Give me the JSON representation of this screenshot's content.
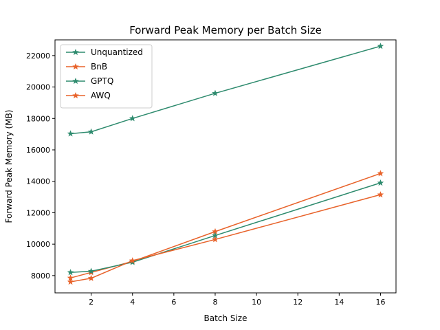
{
  "chart_data": {
    "type": "line",
    "title": "Forward Peak Memory per Batch Size",
    "xlabel": "Batch Size",
    "ylabel": "Forward Peak Memory (MB)",
    "xlim": [
      0.25,
      16.75
    ],
    "ylim": [
      6900,
      23000
    ],
    "xticks": [
      2,
      4,
      6,
      8,
      10,
      12,
      14,
      16
    ],
    "yticks": [
      8000,
      10000,
      12000,
      14000,
      16000,
      18000,
      20000,
      22000
    ],
    "grid": false,
    "legend_position": "top-left",
    "x": [
      1,
      2,
      4,
      8,
      16
    ],
    "series": [
      {
        "name": "Unquantized",
        "color": "#2e8b6e",
        "marker": "star",
        "values": [
          17030,
          17150,
          18000,
          19600,
          22600
        ]
      },
      {
        "name": "BnB",
        "color": "#e8632b",
        "marker": "star",
        "values": [
          7850,
          8200,
          8900,
          10800,
          14500
        ]
      },
      {
        "name": "GPTQ",
        "color": "#2e8b6e",
        "marker": "star",
        "values": [
          8200,
          8280,
          8850,
          10550,
          13900
        ]
      },
      {
        "name": "AWQ",
        "color": "#e8632b",
        "marker": "star",
        "values": [
          7600,
          7830,
          8950,
          10300,
          13150
        ]
      }
    ]
  }
}
